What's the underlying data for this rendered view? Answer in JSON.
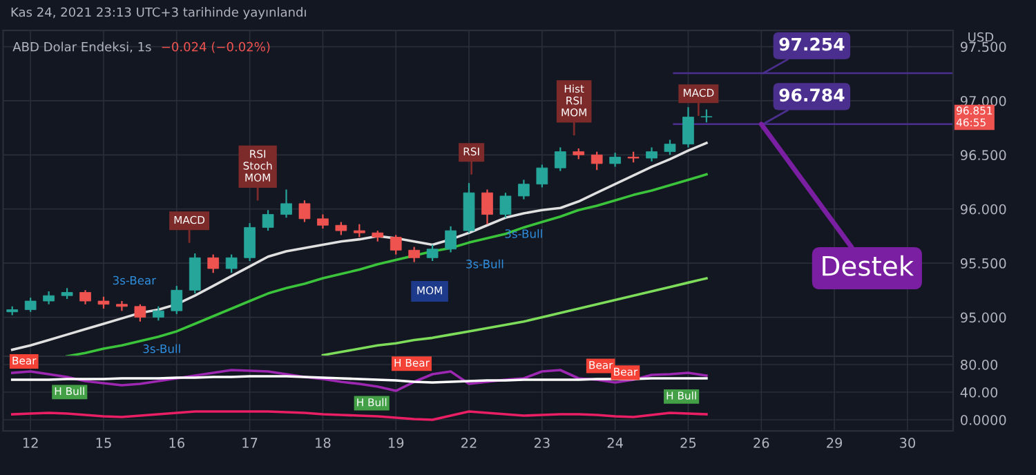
{
  "chart_data": [
    {
      "type": "candlestick",
      "title": "ABD Dolar Endeksi, 1s",
      "subtitle": "−0.024 (−0.02%)",
      "categories": [
        null,
        "12",
        null,
        null,
        null,
        "15",
        null,
        null,
        null,
        "16",
        null,
        null,
        null,
        "17",
        null,
        null,
        null,
        "18",
        null,
        null,
        null,
        "19",
        null,
        null,
        null,
        "22",
        null,
        null,
        null,
        "23",
        null,
        null,
        null,
        "24",
        null,
        null,
        null,
        "25",
        null,
        null,
        null,
        "26",
        null,
        null,
        null,
        "29",
        null,
        null,
        null,
        "30",
        null,
        null
      ],
      "ohlc": [
        [
          95.05,
          95.1,
          95.02,
          95.07
        ],
        [
          95.07,
          95.18,
          95.05,
          95.15
        ],
        [
          95.15,
          95.24,
          95.12,
          95.2
        ],
        [
          95.2,
          95.27,
          95.17,
          95.23
        ],
        [
          95.23,
          95.25,
          95.12,
          95.15
        ],
        [
          95.15,
          95.19,
          95.08,
          95.12
        ],
        [
          95.12,
          95.15,
          95.06,
          95.1
        ],
        [
          95.1,
          95.12,
          94.96,
          95.0
        ],
        [
          95.0,
          95.1,
          94.97,
          95.06
        ],
        [
          95.06,
          95.29,
          95.03,
          95.25
        ],
        [
          95.25,
          95.59,
          95.22,
          95.55
        ],
        [
          95.55,
          95.58,
          95.41,
          95.45
        ],
        [
          95.45,
          95.58,
          95.41,
          95.55
        ],
        [
          95.55,
          95.87,
          95.52,
          95.83
        ],
        [
          95.83,
          95.99,
          95.8,
          95.95
        ],
        [
          95.95,
          96.18,
          95.92,
          96.05
        ],
        [
          96.05,
          96.08,
          95.88,
          95.91
        ],
        [
          95.91,
          95.95,
          95.82,
          95.85
        ],
        [
          95.85,
          95.88,
          95.76,
          95.8
        ],
        [
          95.8,
          95.86,
          95.74,
          95.78
        ],
        [
          95.78,
          95.8,
          95.7,
          95.74
        ],
        [
          95.74,
          95.76,
          95.58,
          95.62
        ],
        [
          95.62,
          95.65,
          95.51,
          95.55
        ],
        [
          95.55,
          95.67,
          95.52,
          95.63
        ],
        [
          95.63,
          95.84,
          95.6,
          95.8
        ],
        [
          95.8,
          96.24,
          95.78,
          96.15
        ],
        [
          96.15,
          96.18,
          95.86,
          95.95
        ],
        [
          95.95,
          96.15,
          95.92,
          96.12
        ],
        [
          96.12,
          96.27,
          96.09,
          96.23
        ],
        [
          96.23,
          96.41,
          96.2,
          96.38
        ],
        [
          96.38,
          96.57,
          96.35,
          96.53
        ],
        [
          96.53,
          96.56,
          96.46,
          96.5
        ],
        [
          96.5,
          96.53,
          96.36,
          96.42
        ],
        [
          96.42,
          96.52,
          96.39,
          96.48
        ],
        [
          96.48,
          96.53,
          96.43,
          96.47
        ],
        [
          96.47,
          96.57,
          96.44,
          96.53
        ],
        [
          96.53,
          96.64,
          96.5,
          96.6
        ],
        [
          96.6,
          96.94,
          96.57,
          96.85
        ],
        [
          96.85,
          96.92,
          96.8,
          96.85
        ],
        null,
        null,
        null,
        null,
        null,
        null,
        null,
        null,
        null,
        null,
        null,
        null,
        null
      ],
      "series": [
        {
          "type": "line",
          "color": "#e0e0e0",
          "values": [
            94.7,
            94.74,
            94.79,
            94.84,
            94.89,
            94.94,
            94.99,
            95.04,
            95.07,
            95.12,
            95.2,
            95.29,
            95.38,
            95.47,
            95.56,
            95.61,
            95.64,
            95.67,
            95.7,
            95.72,
            95.75,
            95.73,
            95.7,
            95.67,
            95.72,
            95.78,
            95.85,
            95.92,
            95.96,
            95.99,
            96.01,
            96.07,
            96.15,
            96.23,
            96.31,
            96.39,
            96.46,
            96.54,
            96.61,
            null,
            null,
            null,
            null,
            null,
            null,
            null,
            null,
            null,
            null,
            null,
            null,
            null
          ]
        },
        {
          "type": "line",
          "color": "#3bc43b",
          "values": [
            null,
            null,
            null,
            94.64,
            94.67,
            94.71,
            94.74,
            94.78,
            94.82,
            94.87,
            94.94,
            95.01,
            95.08,
            95.15,
            95.22,
            95.27,
            95.31,
            95.36,
            95.4,
            95.44,
            95.49,
            95.53,
            95.57,
            95.61,
            95.64,
            95.69,
            95.73,
            95.77,
            95.83,
            95.88,
            95.93,
            95.99,
            96.03,
            96.08,
            96.13,
            96.17,
            96.22,
            96.27,
            96.32,
            null,
            null,
            null,
            null,
            null,
            null,
            null,
            null,
            null,
            null,
            null,
            null,
            null
          ]
        },
        {
          "type": "line",
          "color": "#7ddc5a",
          "values": [
            null,
            null,
            null,
            null,
            null,
            null,
            null,
            null,
            null,
            null,
            null,
            null,
            null,
            null,
            null,
            null,
            null,
            94.65,
            94.68,
            94.71,
            94.74,
            94.76,
            94.79,
            94.81,
            94.84,
            94.87,
            94.9,
            94.93,
            94.96,
            95.0,
            95.04,
            95.08,
            95.12,
            95.16,
            95.2,
            95.24,
            95.28,
            95.32,
            95.36,
            null,
            null,
            null,
            null,
            null,
            null,
            null,
            null,
            null,
            null,
            null,
            null,
            null
          ]
        }
      ],
      "ylim": [
        94.64,
        97.65
      ],
      "yticks": [
        {
          "value": 95.0,
          "label": "95.000"
        },
        {
          "value": 95.5,
          "label": "95.500"
        },
        {
          "value": 96.0,
          "label": "96.000"
        },
        {
          "value": 96.5,
          "label": "96.500"
        },
        {
          "value": 97.0,
          "label": "97.000"
        },
        {
          "value": 97.5,
          "label": "97.500"
        }
      ],
      "tick_labels": "y",
      "grid": true,
      "ref_lines": [
        {
          "axis": "y",
          "value": 97.254,
          "label": "97.254",
          "color": "#4b2f8f"
        },
        {
          "axis": "y",
          "value": 96.784,
          "label": "96.784",
          "color": "#4b2f8f"
        }
      ],
      "annotations": [
        "Kas 24, 2021 23:13 UTC+3 tarihinde yayınlandı",
        "USD",
        "96.851\n46:55",
        {
          "text": "Destek",
          "x": "26",
          "y": 96.784
        },
        "MACD",
        "RSI\nStoch\nMOM",
        "RSI",
        "Hist\nRSI\nMOM",
        "MACD",
        "MOM",
        "3s-Bear",
        "3s-Bull",
        "3s-Bull",
        "3s-Bull"
      ]
    },
    {
      "type": "line",
      "categories": [
        null,
        "12",
        null,
        null,
        null,
        "15",
        null,
        null,
        null,
        "16",
        null,
        null,
        null,
        "17",
        null,
        null,
        null,
        "18",
        null,
        null,
        null,
        "19",
        null,
        null,
        null,
        "22",
        null,
        null,
        null,
        "23",
        null,
        null,
        null,
        "24",
        null,
        null,
        null,
        "25",
        null,
        null,
        null,
        "26",
        null,
        null,
        null,
        "29",
        null,
        null,
        null,
        "30",
        null,
        null
      ],
      "series": [
        {
          "color": "#9c27b0",
          "values": [
            68,
            70,
            66,
            62,
            56,
            53,
            50,
            52,
            56,
            60,
            64,
            68,
            72,
            71,
            70,
            66,
            62,
            59,
            55,
            52,
            48,
            42,
            55,
            66,
            70,
            52,
            55,
            58,
            60,
            70,
            72,
            60,
            58,
            54,
            58,
            65,
            66,
            68,
            64,
            null,
            null,
            null,
            null,
            null,
            null,
            null,
            null,
            null,
            null,
            null,
            null,
            null
          ]
        },
        {
          "color": "#ffffff",
          "values": [
            58,
            58,
            58,
            59,
            59,
            59,
            60,
            60,
            60,
            61,
            61,
            62,
            62,
            63,
            63,
            63,
            62,
            61,
            60,
            59,
            58,
            57,
            55,
            54,
            55,
            56,
            57,
            57,
            58,
            58,
            58,
            58,
            59,
            59,
            59,
            60,
            60,
            60,
            60,
            null,
            null,
            null,
            null,
            null,
            null,
            null,
            null,
            null,
            null,
            null,
            null,
            null
          ]
        },
        {
          "color": "#e91e63",
          "values": [
            8,
            9,
            10,
            9,
            7,
            5,
            4,
            6,
            8,
            10,
            12,
            12,
            12,
            12,
            12,
            11,
            10,
            8,
            7,
            6,
            5,
            3,
            1,
            0,
            6,
            12,
            10,
            8,
            6,
            7,
            8,
            8,
            7,
            5,
            4,
            7,
            10,
            9,
            8,
            null,
            null,
            null,
            null,
            null,
            null,
            null,
            null,
            null,
            null,
            null,
            null,
            null
          ]
        }
      ],
      "ylim": [
        -16,
        92
      ],
      "yticks": [
        {
          "value": 0,
          "label": "0.0000"
        },
        {
          "value": 40,
          "label": "40.00"
        },
        {
          "value": 80,
          "label": "80.00"
        }
      ],
      "grid": true,
      "annotations": [
        "Bear",
        "H Bull",
        "H Bull",
        "H Bull",
        "H Bear",
        "Bear",
        "Bear"
      ]
    }
  ]
}
